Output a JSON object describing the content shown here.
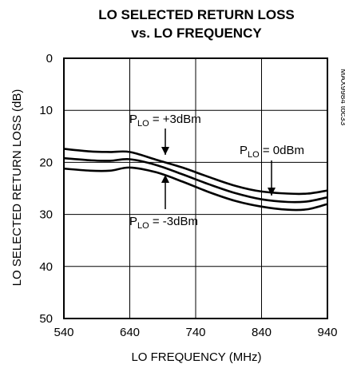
{
  "chart_data": {
    "type": "line",
    "title": "LO SELECTED RETURN LOSS",
    "subtitle": "vs. LO FREQUENCY",
    "xlabel": "LO FREQUENCY (MHz)",
    "ylabel": "LO SELECTED RETURN LOSS (dB)",
    "xlim": [
      540,
      940
    ],
    "ylim": [
      0,
      50
    ],
    "y_inverted": true,
    "xticks": [
      540,
      640,
      740,
      840,
      940
    ],
    "yticks": [
      0,
      10,
      20,
      30,
      40,
      50
    ],
    "grid": true,
    "side_note": "MAX9984 toc33",
    "series": [
      {
        "name": "PLO = +3dBm",
        "x": [
          540,
          580,
          610,
          640,
          680,
          720,
          760,
          800,
          840,
          880,
          910,
          940
        ],
        "y": [
          17.4,
          17.9,
          18.0,
          18.0,
          19.5,
          21.0,
          22.8,
          24.5,
          25.6,
          26.0,
          26.0,
          25.4
        ]
      },
      {
        "name": "PLO = 0dBm",
        "x": [
          540,
          580,
          610,
          640,
          680,
          720,
          760,
          800,
          840,
          880,
          910,
          940
        ],
        "y": [
          19.2,
          19.6,
          19.7,
          19.4,
          20.5,
          22.3,
          24.2,
          25.9,
          27.1,
          27.6,
          27.5,
          26.7
        ]
      },
      {
        "name": "PLO = -3dBm",
        "x": [
          540,
          580,
          610,
          640,
          680,
          720,
          760,
          800,
          840,
          880,
          910,
          940
        ],
        "y": [
          21.2,
          21.6,
          21.6,
          21.0,
          21.9,
          23.7,
          25.7,
          27.4,
          28.5,
          29.1,
          29.0,
          28.0
        ]
      }
    ],
    "annotations": [
      {
        "main": "P",
        "sub": "LO",
        "rest": " = +3dBm"
      },
      {
        "main": "P",
        "sub": "LO",
        "rest": " = 0dBm"
      },
      {
        "main": "P",
        "sub": "LO",
        "rest": " = -3dBm"
      }
    ]
  }
}
